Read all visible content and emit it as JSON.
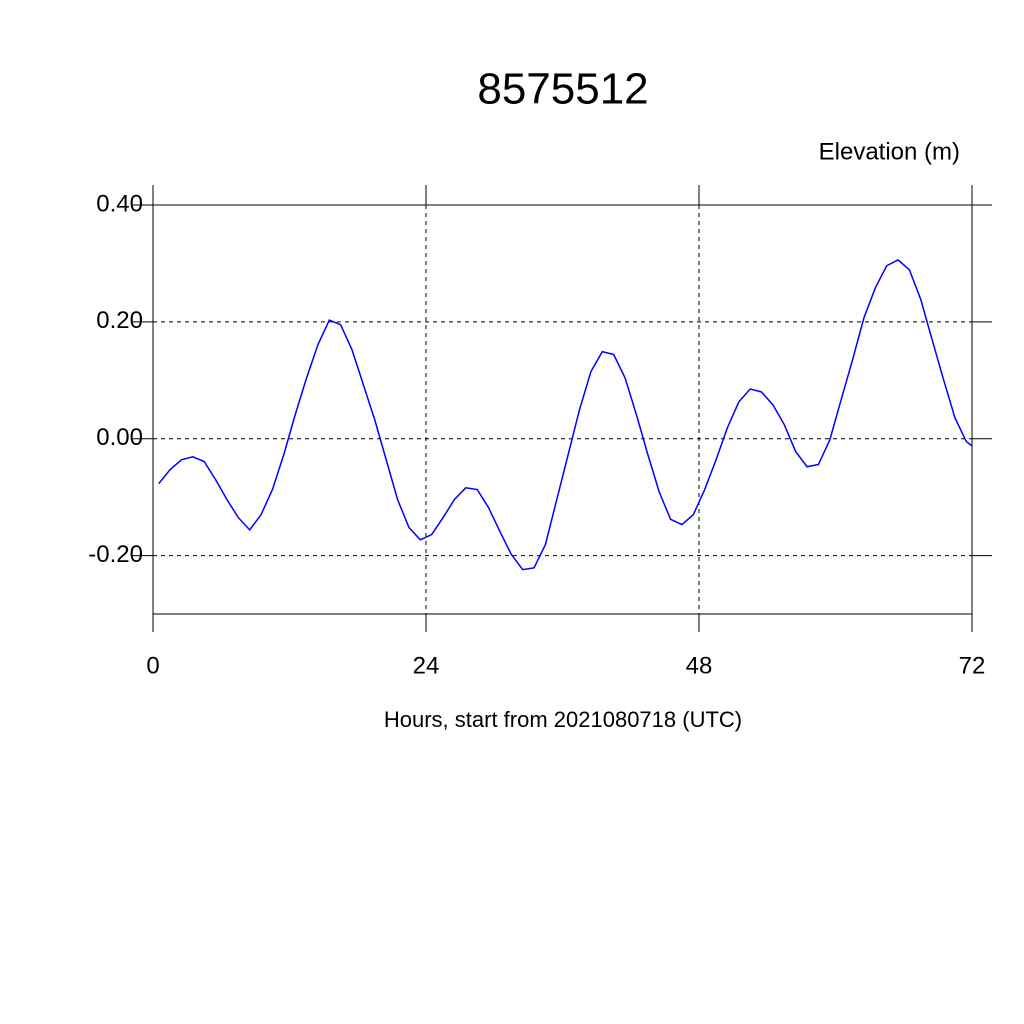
{
  "chart_data": {
    "type": "line",
    "title": "8575512",
    "subtitle": "Elevation (m)",
    "x_label": "Hours, start from 2021080718 (UTC)",
    "x": [
      0.5,
      1.5,
      2.5,
      3.5,
      4.5,
      5.5,
      6.5,
      7.5,
      8.5,
      9.5,
      10.5,
      11.5,
      12.5,
      13.5,
      14.5,
      15.5,
      16.5,
      17.5,
      18.5,
      19.5,
      20.5,
      21.5,
      22.5,
      23.5,
      24.5,
      25.5,
      26.5,
      27.5,
      28.5,
      29.5,
      30.5,
      31.5,
      32.5,
      33.5,
      34.5,
      35.5,
      36.5,
      37.5,
      38.5,
      39.5,
      40.5,
      41.5,
      42.5,
      43.5,
      44.5,
      45.5,
      46.5,
      47.5,
      48.5,
      49.5,
      50.5,
      51.5,
      52.5,
      53.5,
      54.5,
      55.5,
      56.5,
      57.5,
      58.5,
      59.5,
      60.5,
      61.5,
      62.5,
      63.5,
      64.5,
      65.5,
      66.5,
      67.5,
      68.5,
      69.5,
      70.5,
      71.5,
      72
    ],
    "series": [
      {
        "name": "Elevation",
        "color": "#0000ff",
        "values": [
          -0.077,
          -0.053,
          -0.036,
          -0.031,
          -0.039,
          -0.07,
          -0.104,
          -0.135,
          -0.156,
          -0.13,
          -0.087,
          -0.027,
          0.041,
          0.104,
          0.161,
          0.203,
          0.195,
          0.152,
          0.092,
          0.032,
          -0.036,
          -0.104,
          -0.152,
          -0.173,
          -0.164,
          -0.135,
          -0.104,
          -0.084,
          -0.087,
          -0.118,
          -0.159,
          -0.198,
          -0.224,
          -0.221,
          -0.181,
          -0.104,
          -0.027,
          0.05,
          0.115,
          0.149,
          0.144,
          0.104,
          0.041,
          -0.027,
          -0.091,
          -0.138,
          -0.147,
          -0.13,
          -0.087,
          -0.036,
          0.019,
          0.063,
          0.085,
          0.08,
          0.058,
          0.024,
          -0.022,
          -0.048,
          -0.044,
          -0.002,
          0.067,
          0.135,
          0.207,
          0.258,
          0.296,
          0.306,
          0.289,
          0.238,
          0.169,
          0.101,
          0.036,
          -0.005,
          -0.012
        ]
      }
    ],
    "xlim": [
      0,
      72
    ],
    "xticks": [
      0,
      24,
      48,
      72
    ],
    "ylim": [
      -0.3,
      0.4
    ],
    "yticks": [
      {
        "value": 0.4,
        "label": "0.40"
      },
      {
        "value": 0.2,
        "label": "0.20"
      },
      {
        "value": 0,
        "label": "0.00"
      },
      {
        "value": -0.2,
        "label": "-0.20"
      }
    ],
    "grid": true
  }
}
